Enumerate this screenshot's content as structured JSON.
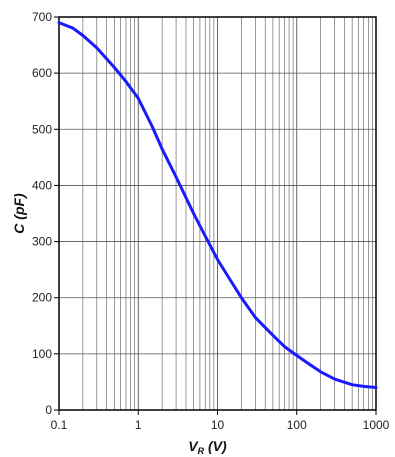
{
  "chart_data": {
    "type": "line",
    "title": "",
    "x_scale": "log",
    "xlim": [
      0.1,
      1000
    ],
    "ylim": [
      0,
      700
    ],
    "grid": true,
    "xlabel": {
      "main": "V",
      "sub": "R",
      "unit": " (V)"
    },
    "ylabel": "C (pF)",
    "x_ticks": [
      0.1,
      1,
      10,
      100,
      1000
    ],
    "x_tick_labels": [
      "0.1",
      "1",
      "10",
      "100",
      "1000"
    ],
    "y_ticks": [
      0,
      100,
      200,
      300,
      400,
      500,
      600,
      700
    ],
    "y_tick_labels": [
      "0",
      "100",
      "200",
      "300",
      "400",
      "500",
      "600",
      "700"
    ],
    "series": [
      {
        "color": "#1a1aff",
        "x": [
          0.1,
          0.15,
          0.2,
          0.3,
          0.5,
          0.7,
          1,
          1.5,
          2,
          3,
          5,
          7,
          10,
          15,
          20,
          30,
          50,
          70,
          100,
          150,
          200,
          300,
          500,
          700,
          1000
        ],
        "y": [
          690,
          680,
          667,
          645,
          610,
          585,
          555,
          505,
          465,
          415,
          350,
          310,
          268,
          228,
          200,
          165,
          133,
          113,
          97,
          80,
          68,
          55,
          45,
          42,
          40
        ]
      }
    ]
  }
}
